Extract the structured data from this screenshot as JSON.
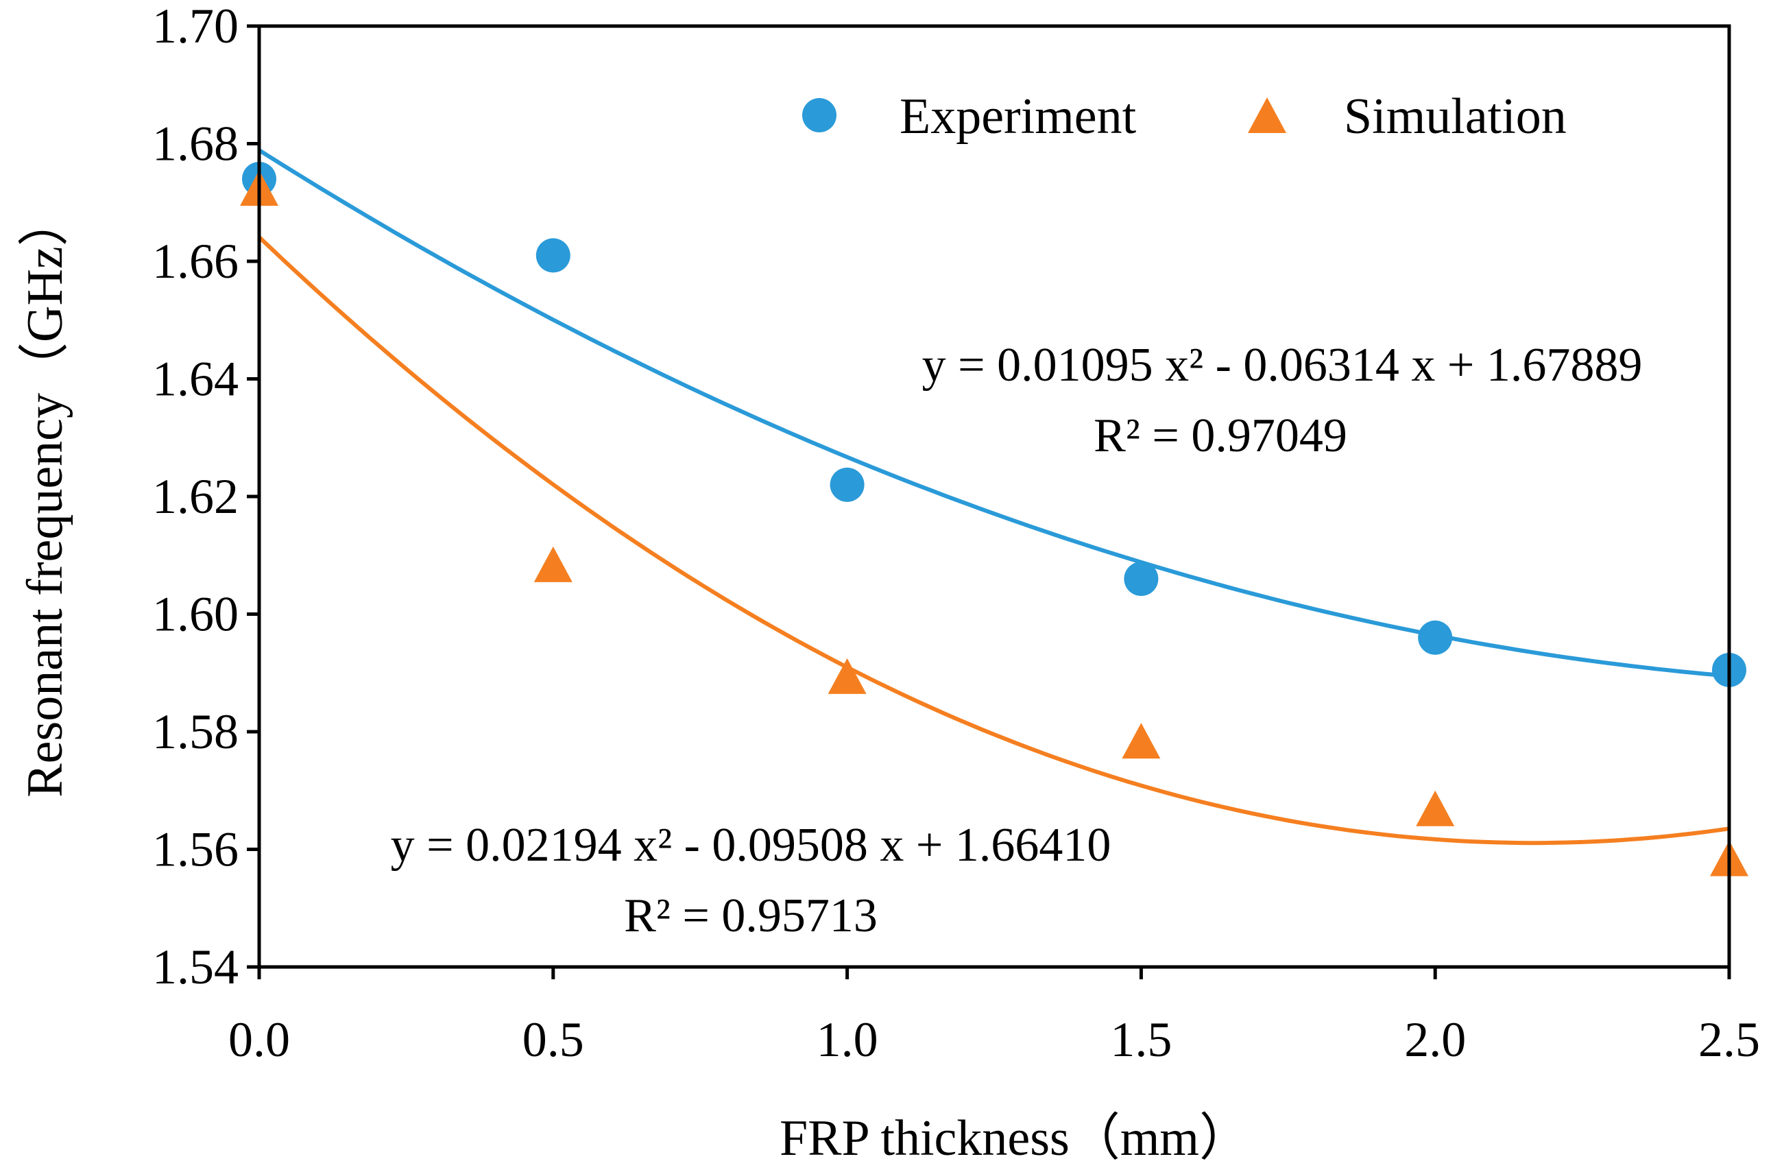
{
  "chart_data": {
    "type": "scatter",
    "title": "",
    "xlabel": "FRP thickness（mm）",
    "ylabel": "Resonant frequency（GHz）",
    "xlim": [
      0,
      2.5
    ],
    "ylim": [
      1.54,
      1.7
    ],
    "x_ticks": [
      "0.0",
      "0.5",
      "1.0",
      "1.5",
      "2.0",
      "2.5"
    ],
    "y_ticks": [
      "1.54",
      "1.56",
      "1.58",
      "1.60",
      "1.62",
      "1.64",
      "1.66",
      "1.68",
      "1.70"
    ],
    "grid": false,
    "legend_position": "top-right",
    "series": [
      {
        "name": "Experiment",
        "marker": "circle",
        "color": "#2a9ad8",
        "x": [
          0.0,
          0.5,
          1.0,
          1.5,
          2.0,
          2.5
        ],
        "y": [
          1.674,
          1.661,
          1.622,
          1.606,
          1.596,
          1.5905
        ],
        "trendline": {
          "type": "polynomial",
          "coefficients": [
            0.01095,
            -0.06314,
            1.67889
          ],
          "equation": "y = 0.01095 x² - 0.06314 x + 1.67889",
          "r2": "R² = 0.97049"
        }
      },
      {
        "name": "Simulation",
        "marker": "triangle",
        "color": "#f57f20",
        "x": [
          0.0,
          0.5,
          1.0,
          1.5,
          2.0,
          2.5
        ],
        "y": [
          1.672,
          1.608,
          1.589,
          1.578,
          1.5665,
          1.558
        ],
        "trendline": {
          "type": "polynomial",
          "coefficients": [
            0.02194,
            -0.09508,
            1.6641
          ],
          "equation": "y = 0.02194 x² - 0.09508 x + 1.66410",
          "r2": "R² = 0.95713"
        }
      }
    ]
  }
}
